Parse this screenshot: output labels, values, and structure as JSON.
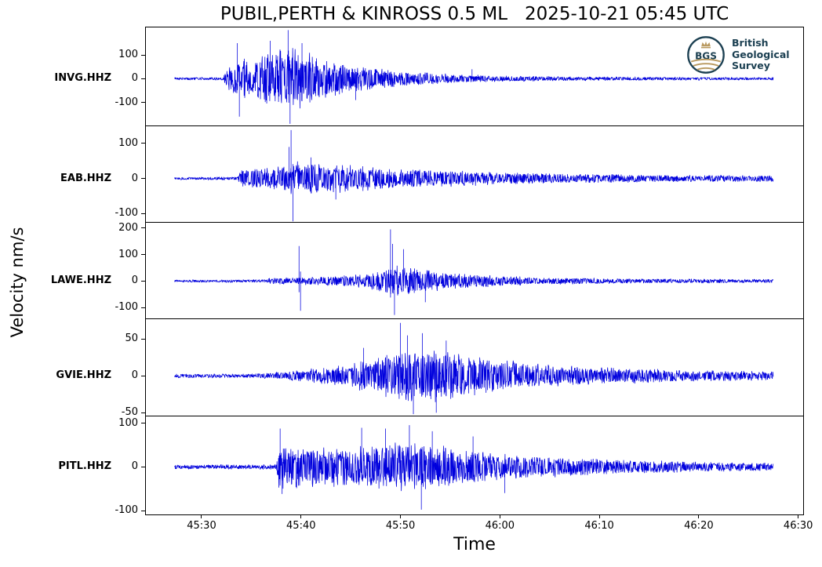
{
  "figure": {
    "title": "PUBIL,PERTH & KINROSS 0.5 ML   2025-10-21 05:45 UTC",
    "xlabel": "Time",
    "ylabel": "Velocity nm/s",
    "trace_color": "#0000dd",
    "axis_color": "#000000",
    "background": "#ffffff"
  },
  "logo": {
    "acronym": "BGS",
    "name_lines": [
      "British",
      "Geological",
      "Survey"
    ],
    "navy": "#1c4052",
    "gold": "#b9995f"
  },
  "chart_data": {
    "type": "line",
    "title": "PUBIL,PERTH & KINROSS 0.5 ML   2025-10-21 05:45 UTC",
    "xlabel": "Time",
    "ylabel": "Velocity nm/s",
    "x_axis_units": "mm:ss of hour 05:00 UTC",
    "grid": false,
    "legend": "none",
    "xlim_seconds": [
      2724.4,
      2790.5
    ],
    "trace_start": 2727.3,
    "trace_end": 2787.5,
    "x_ticks": [
      {
        "seconds": 2730,
        "label": "45:30"
      },
      {
        "seconds": 2740,
        "label": "45:40"
      },
      {
        "seconds": 2750,
        "label": "45:50"
      },
      {
        "seconds": 2760,
        "label": "46:00"
      },
      {
        "seconds": 2770,
        "label": "46:10"
      },
      {
        "seconds": 2780,
        "label": "46:20"
      },
      {
        "seconds": 2790,
        "label": "46:30"
      }
    ],
    "channels": [
      {
        "label": "INVG.HHZ",
        "seed": 17,
        "ylim": [
          -197,
          216
        ],
        "yticks": [
          100,
          0,
          -100
        ],
        "envelope": [
          [
            2727.3,
            6
          ],
          [
            2732.2,
            7
          ],
          [
            2732.5,
            45
          ],
          [
            2733.5,
            70
          ],
          [
            2734.2,
            95
          ],
          [
            2735.2,
            65
          ],
          [
            2736.5,
            120
          ],
          [
            2737.5,
            135
          ],
          [
            2739.0,
            140
          ],
          [
            2740.5,
            120
          ],
          [
            2742.0,
            90
          ],
          [
            2744.0,
            68
          ],
          [
            2746.0,
            52
          ],
          [
            2748.0,
            42
          ],
          [
            2750.5,
            32
          ],
          [
            2753.0,
            24
          ],
          [
            2756.0,
            18
          ],
          [
            2760.0,
            13
          ],
          [
            2764.0,
            11
          ],
          [
            2769.0,
            9
          ],
          [
            2775.0,
            8
          ],
          [
            2781.0,
            7
          ],
          [
            2787.5,
            6
          ]
        ],
        "spikes": [
          [
            2733.6,
            150
          ],
          [
            2733.8,
            -160
          ],
          [
            2736.9,
            160
          ],
          [
            2738.7,
            205
          ],
          [
            2738.9,
            -190
          ],
          [
            2740.1,
            150
          ],
          [
            2745.5,
            -90
          ],
          [
            2757.2,
            40
          ]
        ]
      },
      {
        "label": "EAB.HHZ",
        "seed": 29,
        "ylim": [
          -124,
          149
        ],
        "yticks": [
          100,
          0,
          -100
        ],
        "envelope": [
          [
            2727.3,
            4
          ],
          [
            2733.6,
            5
          ],
          [
            2734.0,
            24
          ],
          [
            2736.0,
            30
          ],
          [
            2738.5,
            36
          ],
          [
            2739.5,
            48
          ],
          [
            2741.5,
            44
          ],
          [
            2744.0,
            40
          ],
          [
            2747.0,
            34
          ],
          [
            2750.0,
            29
          ],
          [
            2754.0,
            25
          ],
          [
            2758.0,
            21
          ],
          [
            2762.0,
            17
          ],
          [
            2767.0,
            14
          ],
          [
            2772.0,
            12
          ],
          [
            2778.0,
            10
          ],
          [
            2787.5,
            9
          ]
        ],
        "spikes": [
          [
            2738.8,
            90
          ],
          [
            2739.0,
            138
          ],
          [
            2739.2,
            -128
          ],
          [
            2741.0,
            60
          ],
          [
            2743.5,
            -60
          ]
        ]
      },
      {
        "label": "LAWE.HHZ",
        "seed": 41,
        "ylim": [
          -141,
          220
        ],
        "yticks": [
          200,
          100,
          0,
          -100
        ],
        "envelope": [
          [
            2727.3,
            5
          ],
          [
            2736.5,
            6
          ],
          [
            2737.0,
            13
          ],
          [
            2739.0,
            14
          ],
          [
            2741.0,
            16
          ],
          [
            2744.0,
            20
          ],
          [
            2746.5,
            28
          ],
          [
            2748.3,
            42
          ],
          [
            2749.5,
            60
          ],
          [
            2751.0,
            52
          ],
          [
            2753.0,
            42
          ],
          [
            2755.5,
            30
          ],
          [
            2758.0,
            24
          ],
          [
            2761.0,
            18
          ],
          [
            2765.0,
            14
          ],
          [
            2770.0,
            11
          ],
          [
            2776.0,
            9
          ],
          [
            2782.0,
            8
          ],
          [
            2787.5,
            7
          ]
        ],
        "spikes": [
          [
            2739.8,
            132
          ],
          [
            2739.95,
            -112
          ],
          [
            2749.0,
            195
          ],
          [
            2749.2,
            140
          ],
          [
            2749.4,
            -128
          ],
          [
            2750.3,
            120
          ],
          [
            2752.5,
            -80
          ]
        ]
      },
      {
        "label": "GVIE.HHZ",
        "seed": 53,
        "ylim": [
          -54,
          77
        ],
        "yticks": [
          50,
          0,
          -50
        ],
        "envelope": [
          [
            2727.3,
            3
          ],
          [
            2735.5,
            3
          ],
          [
            2738.0,
            6
          ],
          [
            2740.5,
            9
          ],
          [
            2743.0,
            13
          ],
          [
            2745.5,
            18
          ],
          [
            2747.5,
            24
          ],
          [
            2749.5,
            32
          ],
          [
            2751.0,
            38
          ],
          [
            2753.0,
            36
          ],
          [
            2755.0,
            32
          ],
          [
            2757.5,
            27
          ],
          [
            2760.0,
            22
          ],
          [
            2763.0,
            18
          ],
          [
            2766.5,
            14
          ],
          [
            2770.0,
            12
          ],
          [
            2774.0,
            10
          ],
          [
            2779.0,
            8
          ],
          [
            2783.0,
            7
          ],
          [
            2787.5,
            6
          ]
        ],
        "spikes": [
          [
            2746.3,
            38
          ],
          [
            2750.0,
            72
          ],
          [
            2750.7,
            55
          ],
          [
            2751.3,
            -52
          ],
          [
            2752.2,
            58
          ],
          [
            2753.6,
            -50
          ],
          [
            2754.6,
            48
          ]
        ]
      },
      {
        "label": "PITL.HHZ",
        "seed": 65,
        "ylim": [
          -109,
          116
        ],
        "yticks": [
          100,
          0,
          -100
        ],
        "envelope": [
          [
            2727.3,
            5
          ],
          [
            2737.5,
            6
          ],
          [
            2737.8,
            55
          ],
          [
            2739.5,
            48
          ],
          [
            2742.0,
            45
          ],
          [
            2744.5,
            50
          ],
          [
            2747.0,
            52
          ],
          [
            2749.5,
            55
          ],
          [
            2752.0,
            58
          ],
          [
            2754.0,
            50
          ],
          [
            2756.5,
            42
          ],
          [
            2759.0,
            34
          ],
          [
            2762.0,
            28
          ],
          [
            2765.5,
            23
          ],
          [
            2769.0,
            19
          ],
          [
            2773.0,
            16
          ],
          [
            2778.0,
            13
          ],
          [
            2783.0,
            11
          ],
          [
            2787.5,
            10
          ]
        ],
        "spikes": [
          [
            2737.9,
            88
          ],
          [
            2738.1,
            -62
          ],
          [
            2746.1,
            90
          ],
          [
            2748.5,
            88
          ],
          [
            2750.9,
            96
          ],
          [
            2752.1,
            -98
          ],
          [
            2753.2,
            82
          ],
          [
            2757.3,
            70
          ],
          [
            2760.5,
            -60
          ]
        ]
      }
    ]
  }
}
